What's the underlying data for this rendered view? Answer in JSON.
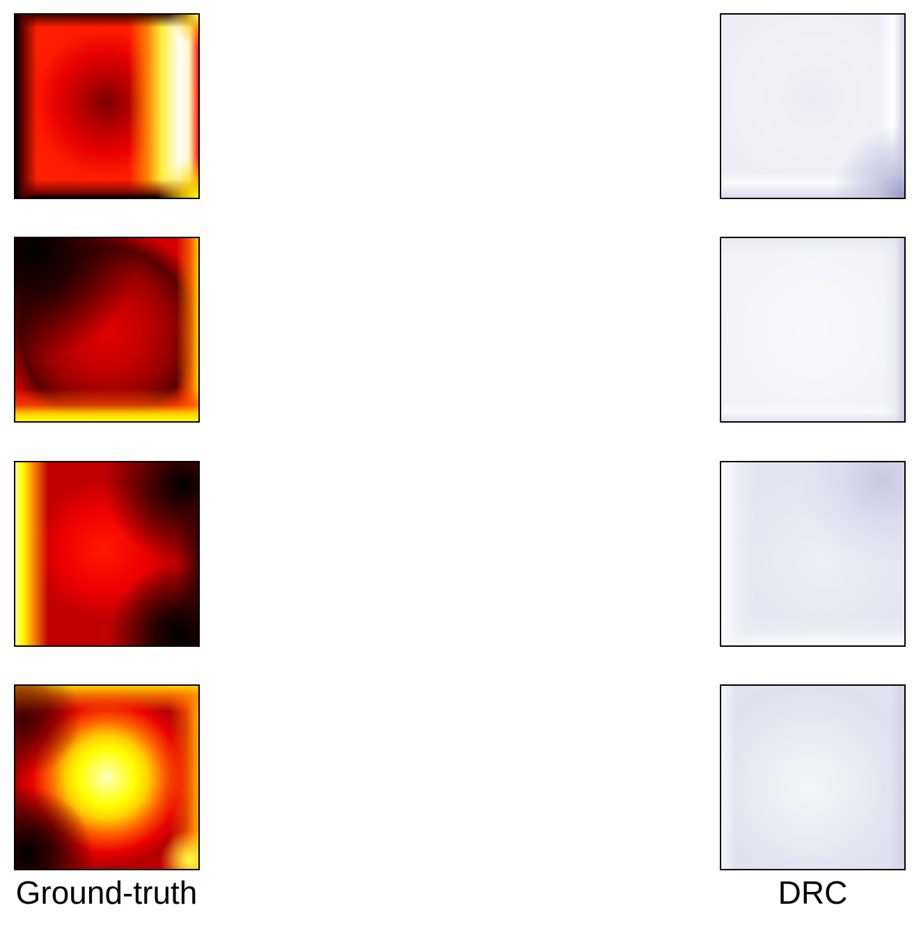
{
  "columns": [
    {
      "label": "Ground-truth",
      "colormap": "hot",
      "panel_count": 4
    },
    {
      "label": "DRC",
      "colormap": "lavender",
      "panel_count": 4
    }
  ],
  "colors": {
    "background": "#ffffff",
    "border": "#000000",
    "hot_dark": "#000000",
    "hot_mid": "#ff0000",
    "hot_bright": "#ffff00",
    "drc_tint": "#e6e6f2",
    "drc_accent": "#9898c8"
  }
}
